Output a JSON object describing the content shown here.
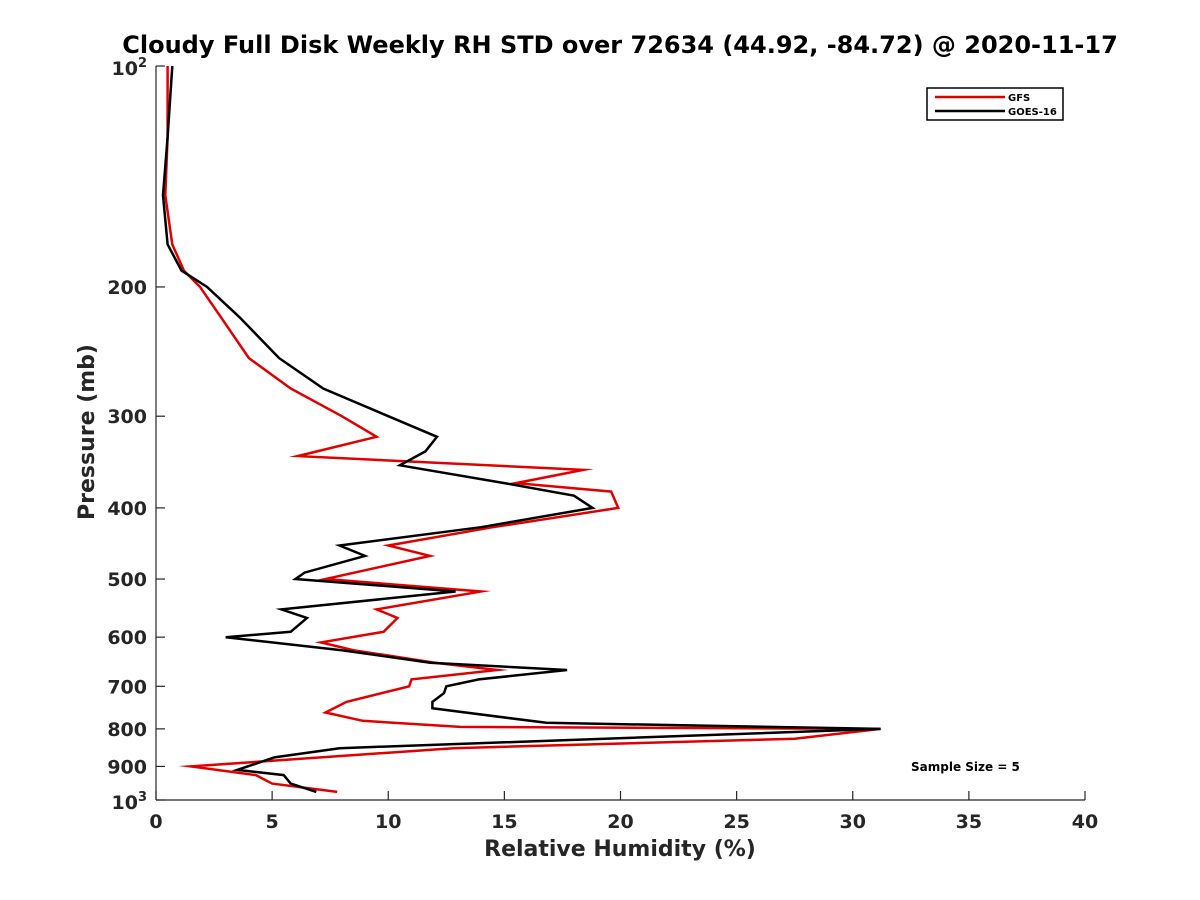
{
  "chart_data": {
    "type": "line",
    "title": "Cloudy Full Disk Weekly RH STD over 72634 (44.92, -84.72) @ 2020-11-17",
    "xlabel": "Relative Humidity (%)",
    "ylabel": "Pressure (mb)",
    "xlim": [
      0,
      40
    ],
    "ylim": [
      100,
      1000
    ],
    "y_scale": "log",
    "y_reversed": true,
    "grid": false,
    "legend_position": "top-right",
    "x_ticks": [
      "0",
      "5",
      "10",
      "15",
      "20",
      "25",
      "30",
      "35",
      "40"
    ],
    "y_ticks": [
      {
        "value": 100,
        "base": "10",
        "exp": "2"
      },
      {
        "value": 200,
        "label": "200"
      },
      {
        "value": 300,
        "label": "300"
      },
      {
        "value": 400,
        "label": "400"
      },
      {
        "value": 500,
        "label": "500"
      },
      {
        "value": 600,
        "label": "600"
      },
      {
        "value": 700,
        "label": "700"
      },
      {
        "value": 800,
        "label": "800"
      },
      {
        "value": 900,
        "label": "900"
      },
      {
        "value": 1000,
        "base": "10",
        "exp": "3"
      }
    ],
    "annotation": "Sample Size = 5",
    "series": [
      {
        "name": "GFS",
        "color": "#e00000",
        "points": [
          [
            0.5,
            100
          ],
          [
            0.5,
            125
          ],
          [
            0.4,
            150
          ],
          [
            0.7,
            175
          ],
          [
            1.2,
            190
          ],
          [
            1.9,
            200
          ],
          [
            2.8,
            220
          ],
          [
            4.0,
            250
          ],
          [
            5.8,
            275
          ],
          [
            8.0,
            300
          ],
          [
            9.5,
            320
          ],
          [
            6.1,
            340
          ],
          [
            18.4,
            355
          ],
          [
            15.5,
            370
          ],
          [
            19.6,
            380
          ],
          [
            19.9,
            400
          ],
          [
            14.5,
            425
          ],
          [
            10.0,
            450
          ],
          [
            11.8,
            465
          ],
          [
            7.3,
            500
          ],
          [
            14.0,
            520
          ],
          [
            9.5,
            550
          ],
          [
            10.4,
            565
          ],
          [
            9.8,
            590
          ],
          [
            7.1,
            610
          ],
          [
            8.5,
            625
          ],
          [
            12.0,
            650
          ],
          [
            14.7,
            665
          ],
          [
            11.0,
            685
          ],
          [
            10.9,
            700
          ],
          [
            8.2,
            735
          ],
          [
            7.3,
            760
          ],
          [
            8.9,
            780
          ],
          [
            13.1,
            795
          ],
          [
            31.2,
            800
          ],
          [
            27.5,
            825
          ],
          [
            12.8,
            850
          ],
          [
            1.5,
            900
          ],
          [
            4.3,
            925
          ],
          [
            5.0,
            950
          ],
          [
            7.8,
            975
          ]
        ]
      },
      {
        "name": "GOES-16",
        "color": "#000000",
        "points": [
          [
            0.7,
            100
          ],
          [
            0.5,
            125
          ],
          [
            0.3,
            150
          ],
          [
            0.5,
            175
          ],
          [
            1.1,
            190
          ],
          [
            2.2,
            200
          ],
          [
            3.6,
            220
          ],
          [
            5.3,
            250
          ],
          [
            7.2,
            275
          ],
          [
            10.0,
            300
          ],
          [
            12.1,
            320
          ],
          [
            11.6,
            335
          ],
          [
            10.5,
            350
          ],
          [
            15.0,
            370
          ],
          [
            18.0,
            385
          ],
          [
            18.8,
            400
          ],
          [
            14.0,
            425
          ],
          [
            7.9,
            450
          ],
          [
            9.0,
            465
          ],
          [
            6.4,
            490
          ],
          [
            6.0,
            500
          ],
          [
            12.9,
            520
          ],
          [
            5.4,
            550
          ],
          [
            6.5,
            565
          ],
          [
            5.8,
            590
          ],
          [
            3.0,
            600
          ],
          [
            8.0,
            625
          ],
          [
            11.8,
            650
          ],
          [
            17.7,
            665
          ],
          [
            13.9,
            685
          ],
          [
            12.5,
            700
          ],
          [
            12.4,
            715
          ],
          [
            11.9,
            735
          ],
          [
            11.9,
            750
          ],
          [
            16.8,
            785
          ],
          [
            31.2,
            800
          ],
          [
            7.9,
            850
          ],
          [
            5.1,
            875
          ],
          [
            3.5,
            910
          ],
          [
            5.5,
            925
          ],
          [
            5.8,
            950
          ],
          [
            6.9,
            975
          ]
        ]
      }
    ]
  }
}
